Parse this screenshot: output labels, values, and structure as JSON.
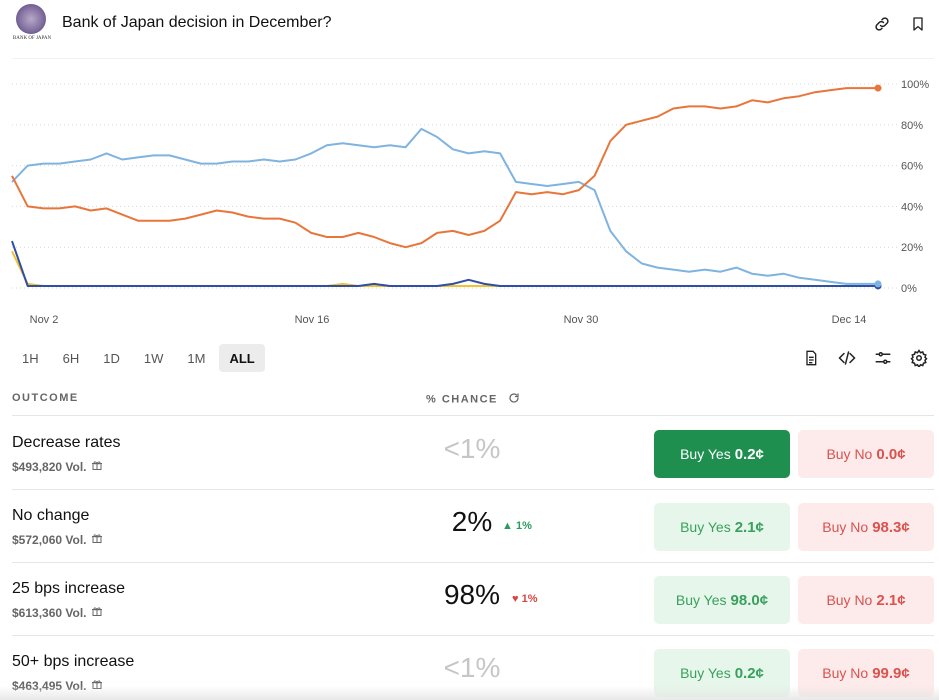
{
  "header": {
    "logo_text": "BANK OF JAPAN",
    "title": "Bank of Japan decision in December?",
    "link_icon": "link-icon",
    "bookmark_icon": "bookmark-icon"
  },
  "colors": {
    "orange": "#e8763a",
    "light_blue": "#7fb3e0",
    "dark_blue": "#2f4ea8",
    "yellow": "#f2c230",
    "green": "#1e8f4e",
    "red": "#d9534f"
  },
  "chart_data": {
    "type": "line",
    "x_ticks": [
      "Nov 2",
      "Nov 16",
      "Nov 30",
      "Dec 14"
    ],
    "y_ticks": [
      "100%",
      "80%",
      "60%",
      "40%",
      "20%",
      "0%"
    ],
    "ylim": [
      0,
      100
    ],
    "series": [
      {
        "name": "25 bps increase",
        "color": "#e8763a",
        "values": [
          55,
          40,
          39,
          39,
          40,
          38,
          39,
          36,
          33,
          33,
          33,
          34,
          36,
          38,
          37,
          35,
          34,
          34,
          32,
          27,
          25,
          25,
          27,
          25,
          22,
          20,
          22,
          27,
          28,
          26,
          28,
          33,
          47,
          46,
          47,
          46,
          48,
          55,
          72,
          80,
          82,
          84,
          88,
          89,
          89,
          88,
          89,
          92,
          91,
          93,
          94,
          96,
          97,
          98,
          98,
          98
        ]
      },
      {
        "name": "No change",
        "color": "#7fb3e0",
        "values": [
          52,
          60,
          61,
          61,
          62,
          63,
          66,
          63,
          64,
          65,
          65,
          63,
          61,
          61,
          62,
          62,
          63,
          62,
          63,
          66,
          70,
          71,
          70,
          69,
          70,
          69,
          78,
          74,
          68,
          66,
          67,
          66,
          52,
          51,
          50,
          51,
          52,
          48,
          28,
          18,
          12,
          10,
          9,
          8,
          9,
          8,
          10,
          7,
          6,
          7,
          5,
          4,
          3,
          2,
          2,
          2
        ]
      },
      {
        "name": "Decrease rates",
        "color": "#2f4ea8",
        "values": [
          23,
          1,
          1,
          1,
          1,
          1,
          1,
          1,
          1,
          1,
          1,
          1,
          1,
          1,
          1,
          1,
          1,
          1,
          1,
          1,
          1,
          1,
          1,
          2,
          1,
          1,
          1,
          1,
          2,
          4,
          2,
          1,
          1,
          1,
          1,
          1,
          1,
          1,
          1,
          1,
          1,
          1,
          1,
          1,
          1,
          1,
          1,
          1,
          1,
          1,
          1,
          1,
          1,
          1,
          1,
          1
        ]
      },
      {
        "name": "50+ bps increase",
        "color": "#f2c230",
        "values": [
          18,
          2,
          1,
          1,
          1,
          1,
          1,
          1,
          1,
          1,
          1,
          1,
          1,
          1,
          1,
          1,
          1,
          1,
          1,
          1,
          1,
          2,
          1,
          1,
          1,
          1,
          1,
          1,
          1,
          1,
          1,
          1,
          1,
          1,
          1,
          1,
          1,
          1,
          1,
          1,
          1,
          1,
          1,
          1,
          1,
          1,
          1,
          1,
          1,
          1,
          1,
          1,
          1,
          1,
          1,
          1
        ]
      }
    ]
  },
  "range": {
    "buttons": [
      "1H",
      "6H",
      "1D",
      "1W",
      "1M",
      "ALL"
    ],
    "active": "ALL"
  },
  "table": {
    "col_outcome": "OUTCOME",
    "col_chance": "% CHANCE",
    "rows": [
      {
        "name": "Decrease rates",
        "volume": "$493,820 Vol.",
        "chance": "<1%",
        "delta": "",
        "yes_label": "Buy Yes",
        "yes_price": "0.2¢",
        "no_label": "Buy No",
        "no_price": "0.0¢"
      },
      {
        "name": "No change",
        "volume": "$572,060 Vol.",
        "chance": "2%",
        "delta": "1%",
        "yes_label": "Buy Yes",
        "yes_price": "2.1¢",
        "no_label": "Buy No",
        "no_price": "98.3¢"
      },
      {
        "name": "25 bps increase",
        "volume": "$613,360 Vol.",
        "chance": "98%",
        "delta": "1%",
        "yes_label": "Buy Yes",
        "yes_price": "98.0¢",
        "no_label": "Buy No",
        "no_price": "2.1¢"
      },
      {
        "name": "50+ bps increase",
        "volume": "$463,495 Vol.",
        "chance": "<1%",
        "delta": "",
        "yes_label": "Buy Yes",
        "yes_price": "0.2¢",
        "no_label": "Buy No",
        "no_price": "99.9¢"
      }
    ]
  }
}
